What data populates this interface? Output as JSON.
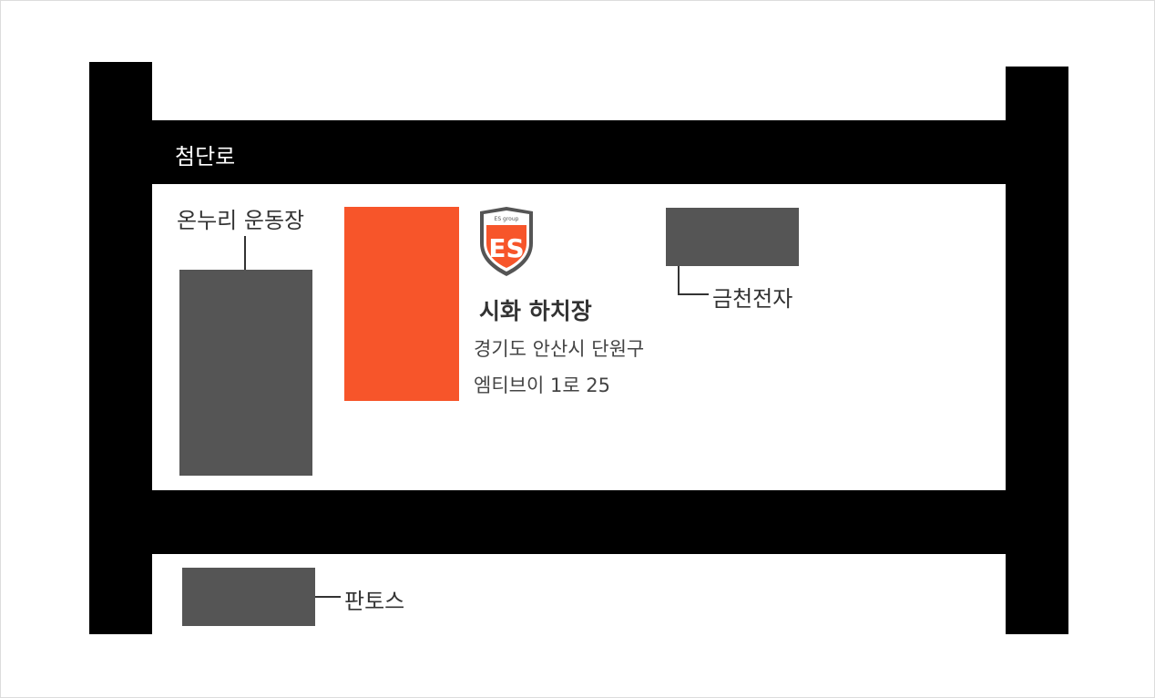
{
  "roads": {
    "top_label": "첨단로"
  },
  "buildings": {
    "onnuri": "온누리 운동장",
    "geumcheon": "금천전자",
    "pantos": "판토스"
  },
  "location": {
    "logo_small_text": "ES group",
    "logo_letters": "ES",
    "name": "시화 하치장",
    "address_line1": "경기도 안산시 단원구",
    "address_line2": "엠티브이 1로 25"
  },
  "colors": {
    "road": "#000000",
    "building": "#555555",
    "target": "#f7552a"
  }
}
